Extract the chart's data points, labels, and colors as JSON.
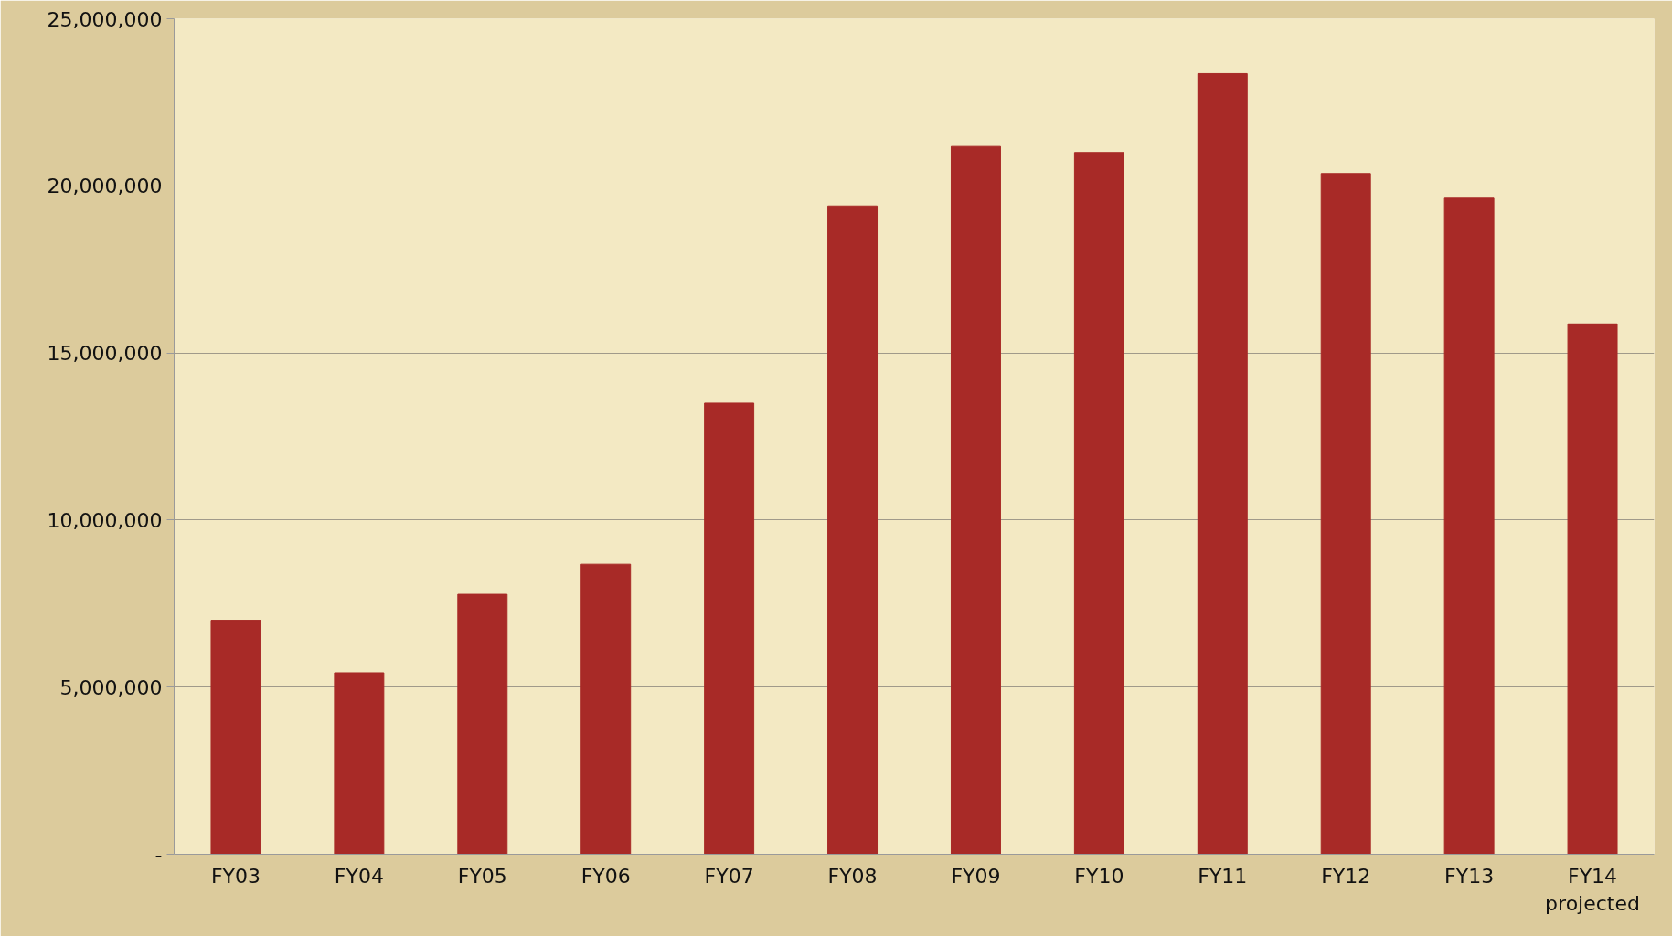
{
  "chart_data": {
    "type": "bar",
    "categories": [
      "FY03",
      "FY04",
      "FY05",
      "FY06",
      "FY07",
      "FY08",
      "FY09",
      "FY10",
      "FY11",
      "FY12",
      "FY13",
      "FY14\nprojected"
    ],
    "values": [
      7000000,
      5430000,
      7780000,
      8680000,
      13500000,
      19400000,
      21180000,
      21000000,
      23360000,
      20370000,
      19630000,
      15870000
    ],
    "color": "#a82a27",
    "ylim": [
      0,
      25000000
    ],
    "yticks": [
      {
        "value": 0,
        "label": "-"
      },
      {
        "value": 5000000,
        "label": "5,000,000"
      },
      {
        "value": 10000000,
        "label": "10,000,000"
      },
      {
        "value": 15000000,
        "label": "15,000,000"
      },
      {
        "value": 20000000,
        "label": "20,000,000"
      },
      {
        "value": 25000000,
        "label": "25,000,000"
      }
    ],
    "grid": "y"
  }
}
